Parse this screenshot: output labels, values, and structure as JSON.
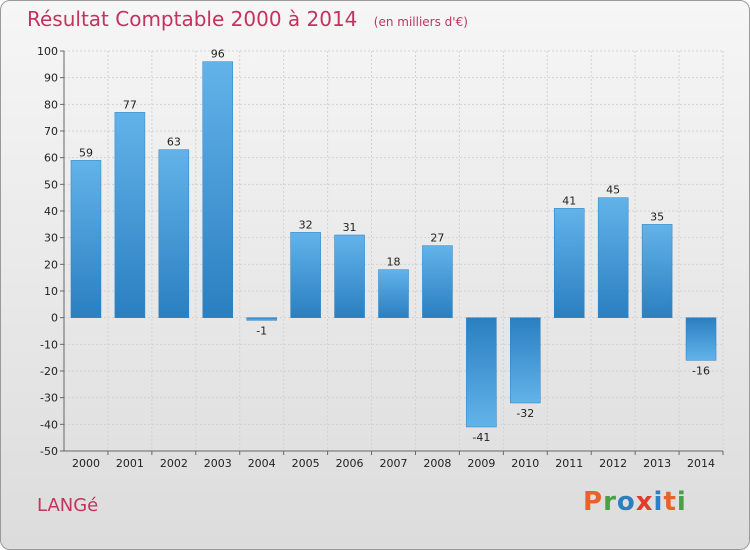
{
  "header": {
    "title": "Résultat Comptable 2000 à 2014",
    "subtitle": "(en milliers d'€)"
  },
  "footer": {
    "place": "LANGé",
    "logo": "Proxiti"
  },
  "colors": {
    "title": "#c4325e",
    "bar_light": "#63b3ea",
    "bar_dark": "#2a7fc0",
    "logo_letters": [
      "#e8622a",
      "#4aa046",
      "#2a7fc0",
      "#e23b2e",
      "#2a7fc0",
      "#e8622a",
      "#4aa046"
    ]
  },
  "chart_data": {
    "type": "bar",
    "title": "Résultat Comptable 2000 à 2014",
    "subtitle": "(en milliers d'€)",
    "categories": [
      "2000",
      "2001",
      "2002",
      "2003",
      "2004",
      "2005",
      "2006",
      "2007",
      "2008",
      "2009",
      "2010",
      "2011",
      "2012",
      "2013",
      "2014"
    ],
    "values": [
      59,
      77,
      63,
      96,
      -1,
      32,
      31,
      18,
      27,
      -41,
      -32,
      41,
      45,
      35,
      -16
    ],
    "ylim": [
      -50,
      100
    ],
    "yticks": [
      -50,
      -40,
      -30,
      -20,
      -10,
      0,
      10,
      20,
      30,
      40,
      50,
      60,
      70,
      80,
      90,
      100
    ],
    "grid": true,
    "xlabel": "",
    "ylabel": ""
  }
}
